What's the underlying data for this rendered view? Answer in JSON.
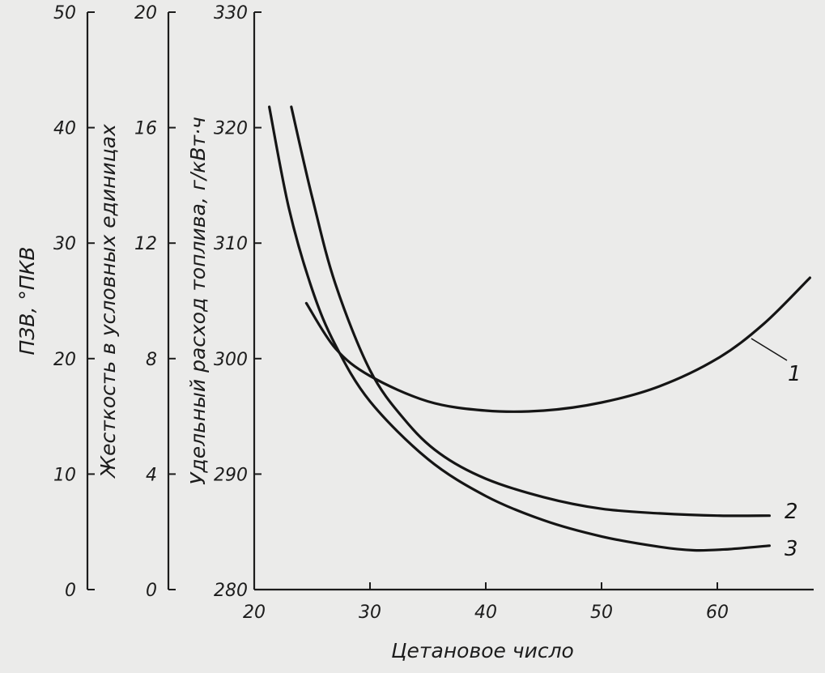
{
  "chart_data": {
    "type": "line",
    "xlabel": "Цетановое число",
    "x_ticks": [
      "20",
      "30",
      "40",
      "50",
      "60"
    ],
    "xlim": [
      20,
      68
    ],
    "y_axes": [
      {
        "id": "pzv",
        "label": "ПЗВ, °ПКВ",
        "range": [
          0,
          50
        ],
        "ticks": [
          "0",
          "10",
          "20",
          "30",
          "40",
          "50"
        ]
      },
      {
        "id": "hard",
        "label": "Жесткость в условных единицах",
        "range": [
          0,
          20
        ],
        "ticks": [
          "0",
          "4",
          "8",
          "12",
          "16",
          "20"
        ]
      },
      {
        "id": "fuel",
        "label": "Удельный расход топлива, г/кВт·ч",
        "range": [
          280,
          330
        ],
        "ticks": [
          "280",
          "290",
          "300",
          "310",
          "320",
          "330"
        ]
      }
    ],
    "series": [
      {
        "name": "1",
        "axis": "fuel",
        "x": [
          24.5,
          27,
          30,
          35,
          40,
          45,
          50,
          55,
          60,
          64,
          68
        ],
        "y": [
          304.8,
          300.9,
          298.5,
          296.3,
          295.5,
          295.5,
          296.2,
          297.6,
          300.0,
          303.0,
          307.0
        ]
      },
      {
        "name": "2",
        "axis": "fuel",
        "x": [
          23.2,
          25,
          27,
          30,
          33,
          36,
          40,
          45,
          50,
          55,
          60,
          64.5
        ],
        "y": [
          321.8,
          314.0,
          306.5,
          299.0,
          294.7,
          291.8,
          289.6,
          288.0,
          287.0,
          286.6,
          286.4,
          286.4
        ]
      },
      {
        "name": "3",
        "axis": "fuel",
        "x": [
          21.3,
          23,
          25,
          27,
          30,
          35,
          40,
          45,
          50,
          55,
          58,
          61,
          64.5
        ],
        "y": [
          321.8,
          313.0,
          306.0,
          301.2,
          296.3,
          291.3,
          288.1,
          286.0,
          284.6,
          283.7,
          283.4,
          283.5,
          283.8
        ]
      }
    ]
  }
}
